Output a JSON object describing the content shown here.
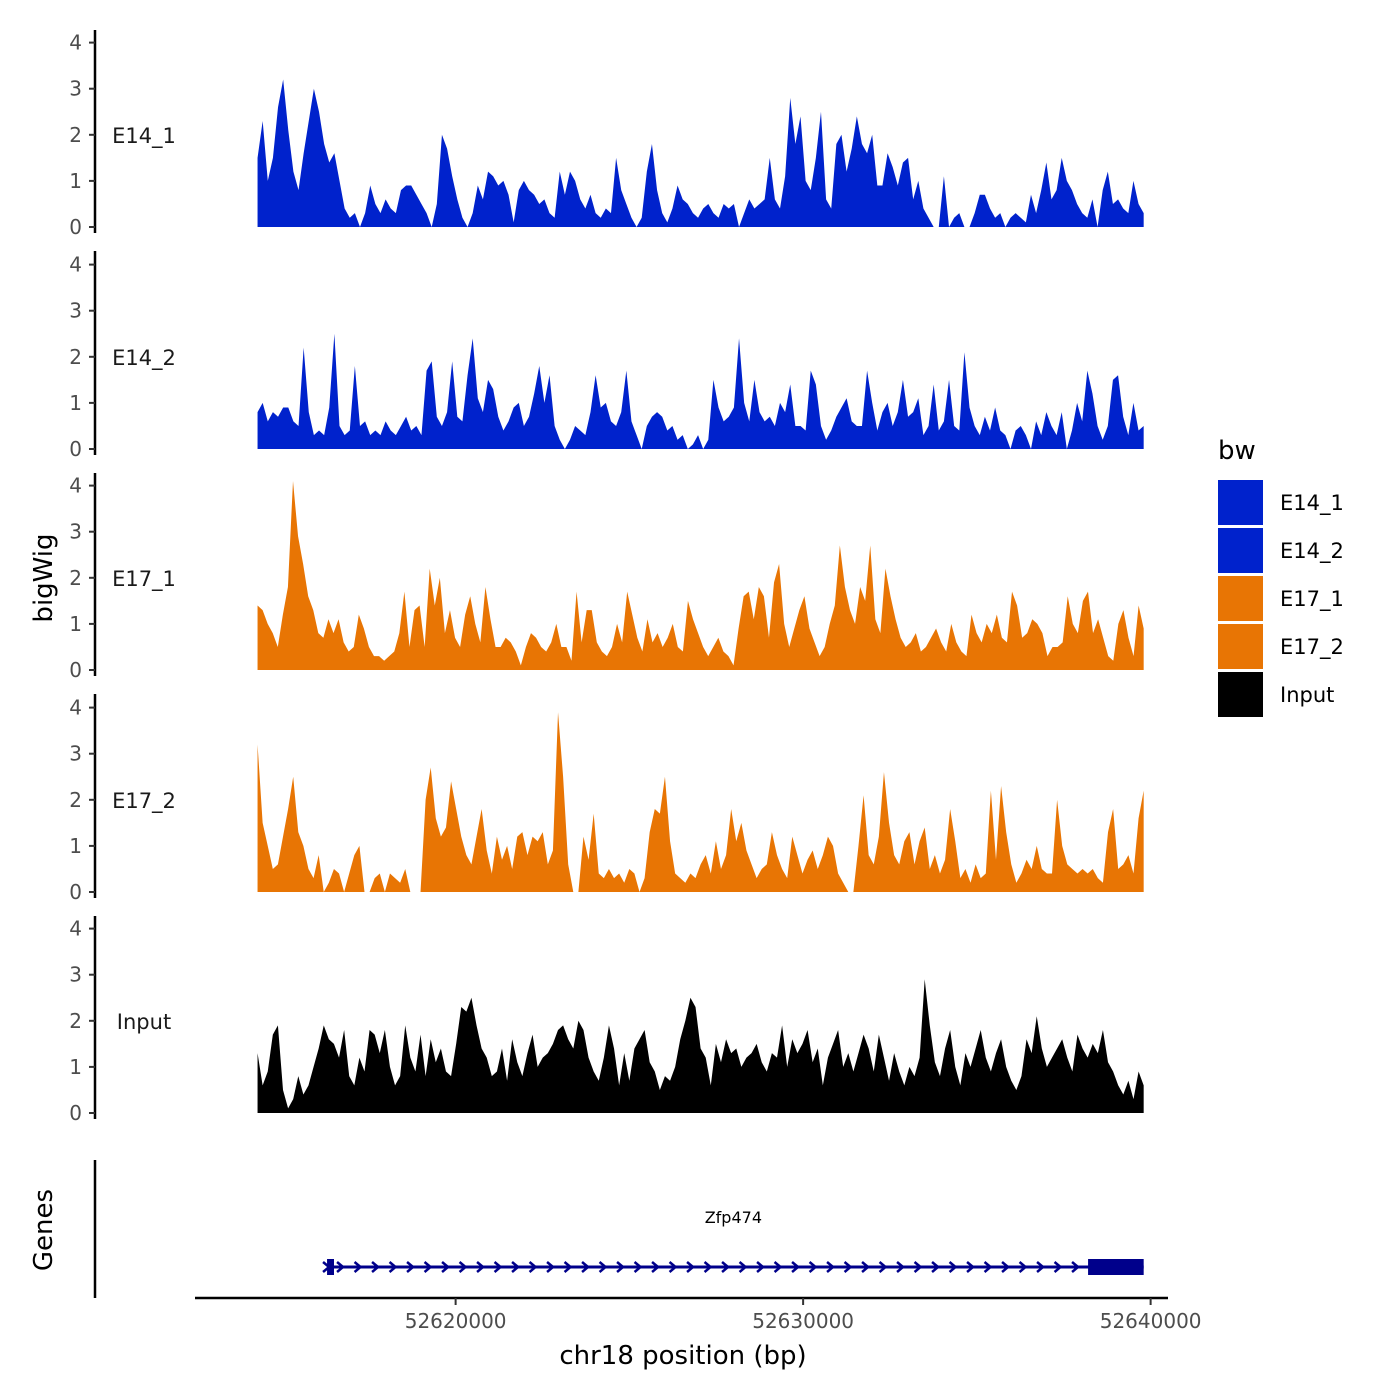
{
  "chart_data": {
    "type": "area",
    "y_axis_title": "bigWig",
    "genes_axis_title": "Genes",
    "x_axis_title": "chr18 position (bp)",
    "xlim": [
      52612500,
      52640500
    ],
    "signal_start": 52614300,
    "signal_end": 52639800,
    "ylim": [
      0,
      4.3
    ],
    "y_ticks": [
      "0",
      "1",
      "2",
      "3",
      "4"
    ],
    "x_ticks": [
      {
        "value": 52620000,
        "label": "52620000"
      },
      {
        "value": 52630000,
        "label": "52630000"
      },
      {
        "value": 52640000,
        "label": "52640000"
      }
    ],
    "legend": {
      "title": "bw",
      "entries": [
        {
          "label": "E14_1",
          "color": "#0022CC"
        },
        {
          "label": "E14_2",
          "color": "#0022CC"
        },
        {
          "label": "E17_1",
          "color": "#E87504"
        },
        {
          "label": "E17_2",
          "color": "#E87504"
        },
        {
          "label": "Input",
          "color": "#000000"
        }
      ]
    },
    "tracks": [
      {
        "name": "E14_1",
        "color": "#0022CC",
        "values": [
          1.5,
          2.3,
          1.0,
          1.5,
          2.6,
          3.2,
          2.1,
          1.2,
          0.8,
          1.6,
          2.3,
          3.0,
          2.5,
          1.8,
          1.4,
          1.6,
          1.0,
          0.4,
          0.2,
          0.3,
          0,
          0.3,
          0.9,
          0.5,
          0.3,
          0.6,
          0.4,
          0.3,
          0.8,
          0.9,
          0.9,
          0.7,
          0.5,
          0.3,
          0,
          0.5,
          2.0,
          1.7,
          1.1,
          0.6,
          0.2,
          0,
          0.3,
          0.9,
          0.6,
          1.2,
          1.1,
          0.9,
          1.0,
          0.7,
          0.1,
          0.8,
          1.0,
          0.8,
          0.7,
          0.5,
          0.6,
          0.3,
          0.2,
          1.2,
          0.7,
          1.2,
          1.0,
          0.6,
          0.4,
          0.7,
          0.3,
          0.2,
          0.4,
          0.3,
          1.5,
          0.8,
          0.5,
          0.2,
          0,
          0.2,
          1.2,
          1.8,
          0.8,
          0.3,
          0.1,
          0.4,
          0.9,
          0.6,
          0.5,
          0.3,
          0.2,
          0.4,
          0.5,
          0.3,
          0.2,
          0.5,
          0.4,
          0.5,
          0,
          0.3,
          0.6,
          0.4,
          0.5,
          0.6,
          1.5,
          0.6,
          0.4,
          1.1,
          2.8,
          1.8,
          2.4,
          1.0,
          0.8,
          1.5,
          2.5,
          0.6,
          0.4,
          1.8,
          2.0,
          1.2,
          1.7,
          2.4,
          1.8,
          1.6,
          2.0,
          0.9,
          0.9,
          1.6,
          1.3,
          0.9,
          1.4,
          1.5,
          0.6,
          1.0,
          0.4,
          0.2,
          0,
          0,
          1.1,
          0,
          0.2,
          0.3,
          0,
          0,
          0.3,
          0.7,
          0.7,
          0.4,
          0.2,
          0.3,
          0,
          0.2,
          0.3,
          0.2,
          0.1,
          0.7,
          0.3,
          0.8,
          1.4,
          0.6,
          0.8,
          1.5,
          1.0,
          0.8,
          0.5,
          0.3,
          0.2,
          0.6,
          0,
          0.8,
          1.2,
          0.5,
          0.6,
          0.4,
          0.3,
          1.0,
          0.5,
          0.3
        ]
      },
      {
        "name": "E14_2",
        "color": "#0022CC",
        "values": [
          0.8,
          1.0,
          0.6,
          0.8,
          0.7,
          0.9,
          0.9,
          0.6,
          0.5,
          2.2,
          0.8,
          0.3,
          0.4,
          0.3,
          0.9,
          2.5,
          0.5,
          0.3,
          0.4,
          1.8,
          0.5,
          0.6,
          0.3,
          0.4,
          0.3,
          0.6,
          0.4,
          0.3,
          0.5,
          0.7,
          0.4,
          0.5,
          0.3,
          1.7,
          1.9,
          0.7,
          0.5,
          0.8,
          1.9,
          0.7,
          0.6,
          1.6,
          2.4,
          1.1,
          0.8,
          1.5,
          1.3,
          0.7,
          0.4,
          0.6,
          0.9,
          1.0,
          0.5,
          0.7,
          1.2,
          1.8,
          1.0,
          1.6,
          0.5,
          0.2,
          0,
          0.2,
          0.5,
          0.4,
          0.3,
          0.8,
          1.6,
          0.9,
          1.0,
          0.6,
          0.5,
          0.8,
          1.7,
          0.6,
          0.3,
          0,
          0.5,
          0.7,
          0.8,
          0.7,
          0.4,
          0.5,
          0.2,
          0.3,
          0,
          0.1,
          0.3,
          0,
          0.2,
          1.5,
          0.9,
          0.6,
          0.7,
          0.9,
          2.4,
          1.0,
          0.6,
          1.5,
          0.8,
          0.6,
          0.7,
          0.5,
          1.0,
          0.8,
          1.4,
          0.5,
          0.5,
          0.4,
          1.7,
          1.4,
          0.5,
          0.2,
          0.4,
          0.7,
          0.9,
          1.1,
          0.6,
          0.5,
          0.5,
          1.7,
          1.0,
          0.4,
          0.8,
          1.0,
          0.5,
          0.8,
          1.5,
          0.7,
          0.8,
          1.1,
          0.3,
          0.5,
          1.4,
          0.4,
          0.6,
          1.5,
          0.5,
          0.4,
          2.1,
          0.9,
          0.5,
          0.3,
          0.7,
          0.4,
          0.9,
          0.4,
          0.3,
          0,
          0.4,
          0.5,
          0.3,
          0,
          0.6,
          0.3,
          0.8,
          0.5,
          0.3,
          0.8,
          0,
          0.4,
          1.0,
          0.6,
          1.7,
          1.2,
          0.5,
          0.2,
          0.5,
          1.5,
          1.6,
          0.7,
          0.3,
          1.0,
          0.4,
          0.5
        ]
      },
      {
        "name": "E17_1",
        "color": "#E87504",
        "values": [
          1.4,
          1.3,
          1.0,
          0.8,
          0.5,
          1.2,
          1.8,
          4.1,
          2.9,
          2.3,
          1.6,
          1.3,
          0.8,
          0.7,
          1.1,
          0.8,
          1.1,
          0.6,
          0.4,
          0.5,
          1.2,
          0.9,
          0.5,
          0.3,
          0.3,
          0.2,
          0.3,
          0.4,
          0.8,
          1.7,
          0.5,
          1.3,
          1.4,
          0.5,
          2.2,
          1.4,
          2.0,
          0.8,
          1.3,
          0.7,
          0.5,
          1.2,
          1.6,
          1.0,
          0.6,
          1.8,
          1.1,
          0.5,
          0.5,
          0.7,
          0.6,
          0.4,
          0.1,
          0.5,
          0.8,
          0.7,
          0.5,
          0.4,
          0.6,
          1.0,
          0.5,
          0.5,
          0.2,
          1.7,
          0.6,
          1.3,
          1.3,
          0.6,
          0.4,
          0.3,
          0.5,
          1.0,
          0.6,
          1.7,
          1.2,
          0.7,
          0.4,
          1.1,
          0.6,
          0.8,
          0.5,
          0.7,
          1.0,
          0.5,
          0.4,
          1.5,
          1.1,
          0.8,
          0.5,
          0.3,
          0.5,
          0.7,
          0.4,
          0.3,
          0.1,
          0.9,
          1.6,
          1.7,
          1.1,
          1.8,
          1.6,
          0.7,
          1.9,
          2.3,
          1.0,
          0.5,
          0.9,
          1.3,
          1.6,
          0.9,
          0.6,
          0.3,
          0.5,
          1.0,
          1.4,
          2.7,
          1.8,
          1.3,
          1.0,
          1.8,
          1.5,
          2.7,
          1.1,
          0.8,
          2.2,
          1.6,
          1.1,
          0.7,
          0.5,
          0.6,
          0.8,
          0.4,
          0.5,
          0.7,
          0.9,
          0.6,
          0.4,
          1.0,
          0.6,
          0.4,
          0.3,
          1.2,
          0.8,
          0.6,
          1.0,
          0.8,
          1.2,
          0.7,
          0.6,
          1.7,
          1.4,
          0.7,
          0.8,
          1.1,
          1.0,
          0.8,
          0.3,
          0.5,
          0.5,
          0.6,
          1.6,
          1.0,
          0.8,
          1.5,
          1.7,
          0.8,
          1.1,
          0.7,
          0.3,
          0.2,
          1.0,
          1.3,
          0.7,
          0.3,
          1.4,
          0.9
        ]
      },
      {
        "name": "E17_2",
        "color": "#E87504",
        "values": [
          3.2,
          1.5,
          1.0,
          0.5,
          0.6,
          1.2,
          1.8,
          2.5,
          1.3,
          1.0,
          0.5,
          0.3,
          0.8,
          0,
          0.2,
          0.5,
          0.4,
          0,
          0.4,
          0.8,
          1.0,
          0,
          0,
          0.3,
          0.4,
          0,
          0.4,
          0.3,
          0.2,
          0.5,
          0,
          0,
          0,
          2.0,
          2.7,
          1.6,
          1.2,
          1.4,
          2.4,
          1.8,
          1.2,
          0.8,
          0.6,
          1.2,
          1.8,
          0.9,
          0.4,
          1.2,
          0.7,
          1.0,
          0.5,
          1.2,
          1.3,
          0.8,
          1.2,
          1.1,
          1.3,
          0.6,
          0.9,
          3.9,
          2.5,
          0.6,
          0,
          0,
          1.2,
          0.7,
          1.7,
          0.4,
          0.3,
          0.5,
          0.3,
          0.4,
          0.2,
          0.5,
          0.4,
          0,
          0.3,
          1.3,
          1.8,
          1.7,
          2.5,
          1.1,
          0.4,
          0.3,
          0.2,
          0.4,
          0.3,
          0.6,
          0.8,
          0.4,
          1.1,
          0.5,
          0.8,
          1.8,
          1.1,
          1.5,
          0.9,
          0.6,
          0.3,
          0.5,
          0.6,
          1.3,
          0.8,
          0.5,
          0.3,
          1.2,
          0.8,
          0.4,
          0.7,
          0.9,
          0.5,
          0.8,
          1.2,
          1.0,
          0.4,
          0.2,
          0,
          0,
          1.0,
          2.1,
          0.8,
          0.6,
          1.2,
          2.6,
          1.5,
          0.8,
          0.6,
          1.1,
          1.3,
          0.6,
          1.1,
          1.4,
          0.5,
          0.8,
          0.4,
          0.7,
          1.8,
          1.1,
          0.3,
          0.5,
          0.2,
          0.6,
          0.3,
          0.4,
          2.2,
          0.7,
          2.3,
          1.3,
          0.6,
          0.2,
          0.4,
          0.7,
          0.5,
          1.0,
          0.5,
          0.4,
          0.4,
          2.0,
          1.0,
          0.6,
          0.5,
          0.4,
          0.5,
          0.4,
          0.5,
          0.3,
          0.2,
          1.3,
          1.8,
          0.5,
          0.6,
          0.8,
          0.4,
          1.6,
          2.2
        ]
      },
      {
        "name": "Input",
        "color": "#000000",
        "values": [
          1.3,
          0.6,
          0.9,
          1.7,
          1.9,
          0.5,
          0.1,
          0.3,
          0.8,
          0.4,
          0.6,
          1.0,
          1.4,
          1.9,
          1.6,
          1.5,
          1.2,
          1.8,
          0.8,
          0.6,
          1.2,
          0.9,
          1.8,
          1.7,
          1.3,
          1.8,
          1.0,
          0.6,
          0.8,
          1.9,
          1.2,
          0.9,
          1.7,
          0.8,
          1.6,
          1.1,
          1.4,
          0.9,
          0.8,
          1.5,
          2.3,
          2.2,
          2.5,
          1.9,
          1.4,
          1.2,
          0.8,
          0.9,
          1.4,
          0.7,
          1.6,
          1.1,
          0.8,
          1.3,
          1.7,
          1.0,
          1.2,
          1.3,
          1.5,
          1.8,
          1.9,
          1.6,
          1.4,
          2.0,
          1.8,
          1.2,
          0.9,
          0.7,
          1.2,
          1.9,
          1.4,
          0.6,
          1.3,
          0.7,
          1.4,
          1.6,
          1.8,
          1.1,
          0.9,
          0.5,
          0.8,
          0.7,
          1.0,
          1.6,
          2.0,
          2.5,
          2.3,
          1.4,
          1.2,
          0.6,
          1.5,
          1.1,
          1.6,
          1.3,
          1.4,
          1.0,
          1.2,
          1.3,
          1.5,
          1.1,
          0.9,
          1.3,
          1.2,
          1.9,
          1.0,
          1.6,
          1.3,
          1.5,
          1.8,
          1.1,
          1.4,
          0.6,
          1.2,
          1.5,
          1.8,
          1.0,
          1.3,
          0.9,
          1.3,
          1.7,
          1.4,
          0.9,
          1.7,
          1.2,
          0.7,
          1.3,
          0.9,
          0.6,
          1.0,
          0.8,
          1.2,
          2.9,
          1.9,
          1.1,
          0.8,
          1.4,
          1.8,
          1.0,
          0.6,
          1.3,
          1.0,
          1.4,
          1.8,
          1.2,
          0.9,
          1.3,
          1.6,
          1.0,
          0.7,
          0.5,
          0.8,
          1.6,
          1.3,
          2.1,
          1.4,
          1.0,
          1.2,
          1.4,
          1.6,
          1.2,
          0.9,
          1.7,
          1.4,
          1.2,
          1.5,
          1.3,
          1.8,
          1.1,
          0.9,
          0.6,
          0.4,
          0.7,
          0.3,
          0.9,
          0.6
        ]
      }
    ],
    "gene": {
      "name": "Zfp474",
      "start": 52616300,
      "end": 52639800,
      "exons": [
        {
          "start": 52616300,
          "end": 52616500
        },
        {
          "start": 52638200,
          "end": 52639800
        }
      ],
      "color": "#00008B",
      "strand": "+"
    }
  }
}
